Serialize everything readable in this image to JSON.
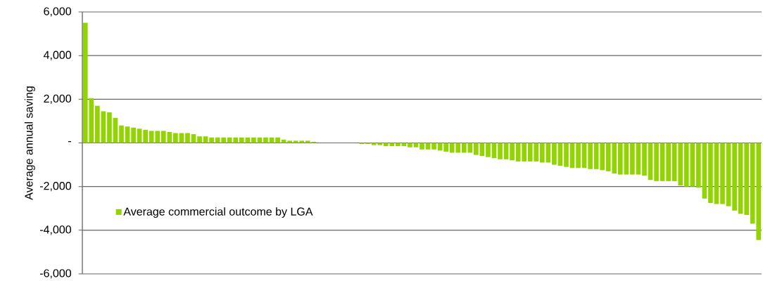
{
  "chart_data": {
    "type": "bar",
    "ylabel": "Average annual saving",
    "categories": [
      null,
      null,
      null,
      null,
      null,
      null,
      null,
      null,
      null,
      null,
      null,
      null,
      null,
      null,
      null,
      null,
      null,
      null,
      null,
      null,
      null,
      null,
      null,
      null,
      null,
      null,
      null,
      null,
      null,
      null,
      null,
      null,
      null,
      null,
      null,
      null,
      null,
      null,
      null,
      null,
      null,
      null,
      null,
      null,
      null,
      null,
      null,
      null,
      null,
      null,
      null,
      null,
      null,
      null,
      null,
      null,
      null,
      null,
      null,
      null,
      null,
      null,
      null,
      null,
      null,
      null,
      null,
      null,
      null,
      null,
      null,
      null,
      null,
      null,
      null,
      null,
      null,
      null,
      null,
      null,
      null,
      null,
      null,
      null,
      null,
      null,
      null,
      null,
      null,
      null,
      null,
      null,
      null,
      null,
      null,
      null,
      null,
      null,
      null,
      null,
      null,
      null,
      null,
      null,
      null,
      null,
      null,
      null,
      null,
      null,
      null,
      null,
      null
    ],
    "series": [
      {
        "name": "Average commercial outcome by LGA",
        "color": "#92d400",
        "values": [
          5500,
          2050,
          1700,
          1450,
          1400,
          1150,
          800,
          750,
          700,
          650,
          600,
          550,
          550,
          550,
          500,
          450,
          450,
          450,
          400,
          300,
          300,
          250,
          250,
          250,
          250,
          250,
          250,
          250,
          250,
          250,
          250,
          250,
          250,
          150,
          100,
          100,
          100,
          100,
          50,
          0,
          0,
          0,
          0,
          0,
          0,
          0,
          -50,
          -50,
          -100,
          -100,
          -150,
          -150,
          -150,
          -150,
          -200,
          -200,
          -300,
          -300,
          -300,
          -350,
          -400,
          -450,
          -450,
          -450,
          -450,
          -550,
          -600,
          -650,
          -700,
          -750,
          -750,
          -800,
          -850,
          -850,
          -850,
          -850,
          -900,
          -900,
          -1000,
          -1050,
          -1100,
          -1150,
          -1150,
          -1150,
          -1200,
          -1200,
          -1250,
          -1300,
          -1400,
          -1450,
          -1450,
          -1450,
          -1450,
          -1500,
          -1700,
          -1750,
          -1750,
          -1750,
          -1750,
          -1950,
          -2000,
          -2000,
          -2050,
          -2550,
          -2750,
          -2800,
          -2800,
          -2900,
          -3100,
          -3250,
          -3300,
          -3700,
          -4450
        ]
      }
    ],
    "ylim": [
      -6000,
      6000
    ],
    "yticks": [
      {
        "value": -6000,
        "label": "-6,000"
      },
      {
        "value": -4000,
        "label": "-4,000"
      },
      {
        "value": -2000,
        "label": "-2,000"
      },
      {
        "value": 0,
        "label": "-"
      },
      {
        "value": 2000,
        "label": "2,000"
      },
      {
        "value": 4000,
        "label": "4,000"
      },
      {
        "value": 6000,
        "label": "6,000"
      }
    ],
    "grid": "y",
    "legend": "bottom left"
  }
}
